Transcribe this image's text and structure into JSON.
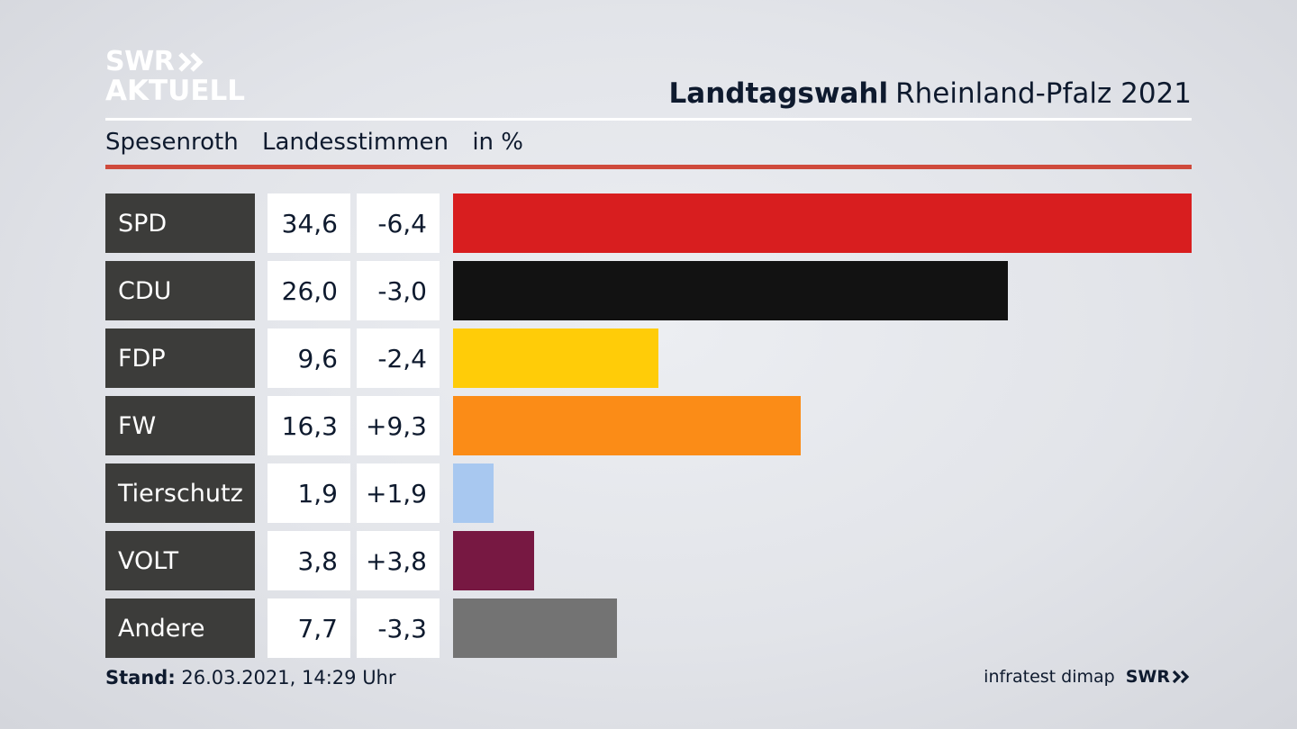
{
  "brand": {
    "logo_line1": "SWR",
    "logo_line2": "AKTUELL",
    "logo_icon": "double-chevron-icon"
  },
  "header": {
    "title_bold": "Landtagswahl",
    "title_rest": "Rheinland-Pfalz 2021",
    "subtitle_place": "Spesenroth",
    "subtitle_type": "Landesstimmen",
    "subtitle_unit": "in %"
  },
  "colors": {
    "accent_line": "#cf4a3c",
    "label_bg": "#3c3c3a"
  },
  "chart_data": {
    "type": "bar",
    "orientation": "horizontal",
    "categories": [
      "SPD",
      "CDU",
      "FDP",
      "FW",
      "Tierschutz",
      "VOLT",
      "Andere"
    ],
    "values": [
      34.6,
      26.0,
      9.6,
      16.3,
      1.9,
      3.8,
      7.7
    ],
    "value_labels": [
      "34,6",
      "26,0",
      "9,6",
      "16,3",
      "1,9",
      "3,8",
      "7,7"
    ],
    "diff_labels": [
      "-6,4",
      "-3,0",
      "-2,4",
      "+9,3",
      "+1,9",
      "+3,8",
      "-3,3"
    ],
    "colors": [
      "#d81e1f",
      "#121212",
      "#ffcc08",
      "#fb8c17",
      "#a8c8f0",
      "#771842",
      "#737373"
    ],
    "xlim": [
      0,
      34.6
    ],
    "grid": false
  },
  "footer": {
    "stand_label": "Stand:",
    "stand_value": "26.03.2021, 14:29 Uhr",
    "source": "infratest dimap",
    "source_brand": "SWR"
  }
}
